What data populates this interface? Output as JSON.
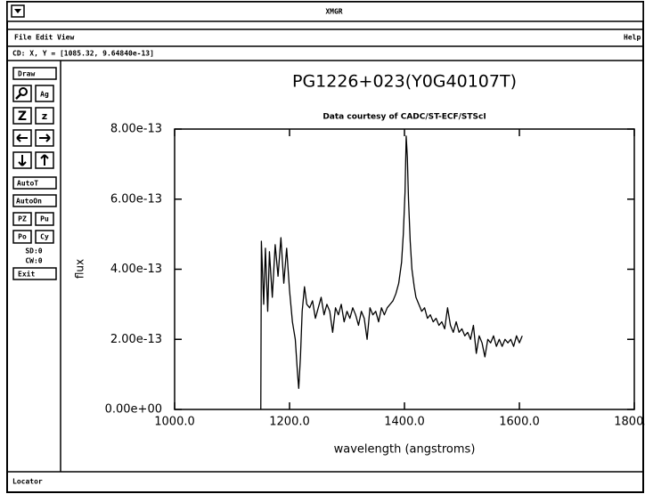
{
  "window": {
    "title": "XMGR",
    "menus": [
      "File",
      "Edit",
      "View"
    ],
    "help": "Help",
    "status": "CD: X, Y = [1085.32, 9.64840e-13]",
    "locator": "Locator"
  },
  "sidebar": {
    "draw": "Draw",
    "ag": "Ag",
    "zoom_big": "Z",
    "zoom_small": "z",
    "autot": "AutoT",
    "autoon": "AutoOn",
    "pz": "PZ",
    "pu": "Pu",
    "po": "Po",
    "cy": "Cy",
    "sd": "SD:0",
    "cw": "CW:0",
    "exit": "Exit"
  },
  "chart_data": {
    "type": "line",
    "title": "PG1226+023(Y0G40107T)",
    "subtitle": "Data courtesy of CADC/ST-ECF/STScI",
    "xlabel": "wavelength (angstroms)",
    "ylabel": "flux",
    "color": "#000000",
    "xlim": [
      1000,
      1800
    ],
    "ylim": [
      0,
      8e-13
    ],
    "xticks": [
      {
        "value": 1000,
        "label": "1000.0"
      },
      {
        "value": 1200,
        "label": "1200.0"
      },
      {
        "value": 1400,
        "label": "1400.0"
      },
      {
        "value": 1600,
        "label": "1600.0"
      },
      {
        "value": 1800,
        "label": "1800.0"
      }
    ],
    "yticks": [
      {
        "value": 0,
        "label": "0.00e+00"
      },
      {
        "value": 2e-13,
        "label": "2.00e-13"
      },
      {
        "value": 4e-13,
        "label": "4.00e-13"
      },
      {
        "value": 6e-13,
        "label": "6.00e-13"
      },
      {
        "value": 8e-13,
        "label": "8.00e-13"
      }
    ],
    "x": [
      1150,
      1151,
      1155,
      1158,
      1162,
      1165,
      1170,
      1175,
      1180,
      1185,
      1190,
      1195,
      1200,
      1205,
      1210,
      1214,
      1216,
      1219,
      1222,
      1226,
      1230,
      1235,
      1240,
      1245,
      1250,
      1255,
      1260,
      1265,
      1270,
      1275,
      1280,
      1285,
      1290,
      1295,
      1300,
      1305,
      1310,
      1315,
      1320,
      1325,
      1330,
      1335,
      1340,
      1345,
      1350,
      1355,
      1360,
      1365,
      1370,
      1375,
      1380,
      1385,
      1390,
      1395,
      1398,
      1401,
      1403,
      1405,
      1407,
      1410,
      1413,
      1417,
      1420,
      1425,
      1430,
      1435,
      1440,
      1445,
      1450,
      1455,
      1460,
      1465,
      1470,
      1475,
      1480,
      1485,
      1490,
      1495,
      1500,
      1505,
      1510,
      1515,
      1520,
      1525,
      1530,
      1535,
      1540,
      1545,
      1550,
      1555,
      1560,
      1565,
      1570,
      1575,
      1580,
      1585,
      1590,
      1595,
      1600,
      1605
    ],
    "values": [
      0,
      4.8e-13,
      3e-13,
      4.6e-13,
      2.8e-13,
      4.5e-13,
      3.2e-13,
      4.7e-13,
      3.8e-13,
      4.9e-13,
      3.6e-13,
      4.6e-13,
      3.4e-13,
      2.5e-13,
      2e-13,
      1e-13,
      6e-14,
      1.5e-13,
      2.8e-13,
      3.5e-13,
      3e-13,
      2.9e-13,
      3.1e-13,
      2.6e-13,
      2.9e-13,
      3.2e-13,
      2.7e-13,
      3e-13,
      2.8e-13,
      2.2e-13,
      2.9e-13,
      2.7e-13,
      3e-13,
      2.5e-13,
      2.8e-13,
      2.6e-13,
      2.9e-13,
      2.7e-13,
      2.4e-13,
      2.8e-13,
      2.6e-13,
      2e-13,
      2.9e-13,
      2.7e-13,
      2.8e-13,
      2.5e-13,
      2.9e-13,
      2.7e-13,
      2.9e-13,
      3e-13,
      3.1e-13,
      3.3e-13,
      3.6e-13,
      4.2e-13,
      5e-13,
      6.2e-13,
      7.8e-13,
      7.2e-13,
      6e-13,
      4.8e-13,
      4e-13,
      3.5e-13,
      3.2e-13,
      3e-13,
      2.8e-13,
      2.9e-13,
      2.6e-13,
      2.7e-13,
      2.5e-13,
      2.6e-13,
      2.4e-13,
      2.5e-13,
      2.3e-13,
      2.9e-13,
      2.4e-13,
      2.2e-13,
      2.5e-13,
      2.2e-13,
      2.3e-13,
      2.1e-13,
      2.2e-13,
      2e-13,
      2.4e-13,
      1.6e-13,
      2.1e-13,
      1.9e-13,
      1.5e-13,
      2e-13,
      1.9e-13,
      2.1e-13,
      1.8e-13,
      2e-13,
      1.8e-13,
      2e-13,
      1.9e-13,
      2e-13,
      1.8e-13,
      2.1e-13,
      1.9e-13,
      2.1e-13
    ]
  }
}
